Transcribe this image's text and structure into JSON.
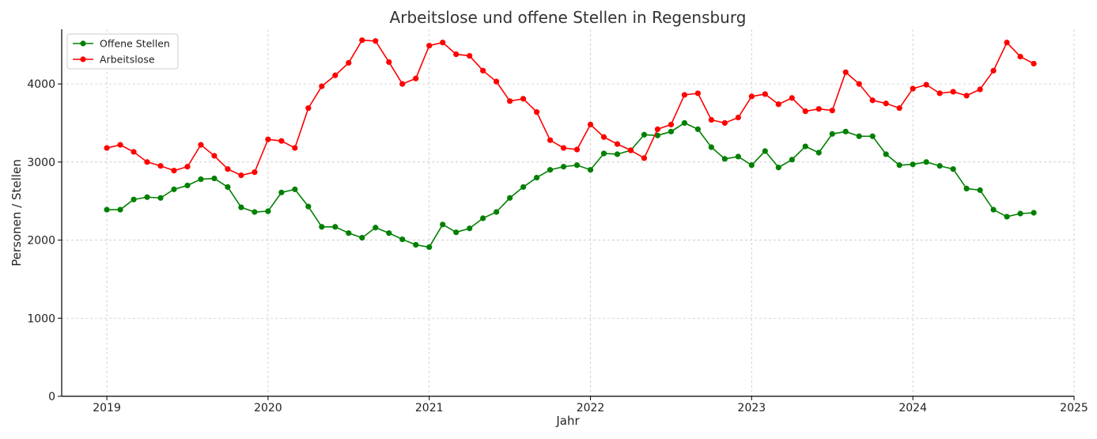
{
  "chart_data": {
    "type": "line",
    "title": "Arbeitslose und offene Stellen in Regensburg",
    "xlabel": "Jahr",
    "ylabel": "Personen / Stellen",
    "xlim": [
      2018.72,
      2025.0
    ],
    "ylim": [
      0,
      4700
    ],
    "x_ticks": [
      2019,
      2020,
      2021,
      2022,
      2023,
      2024,
      2025
    ],
    "y_ticks": [
      0,
      1000,
      2000,
      3000,
      4000
    ],
    "grid": true,
    "legend_position": "top-left",
    "x_start": "2019-01",
    "x_step": "month",
    "series": [
      {
        "name": "Offene Stellen",
        "color": "#008000",
        "values": [
          2390,
          2390,
          2520,
          2550,
          2540,
          2650,
          2700,
          2780,
          2790,
          2680,
          2420,
          2360,
          2370,
          2610,
          2650,
          2430,
          2170,
          2170,
          2090,
          2030,
          2160,
          2090,
          2010,
          1940,
          1910,
          2200,
          2100,
          2150,
          2280,
          2360,
          2540,
          2680,
          2800,
          2900,
          2940,
          2960,
          2900,
          3110,
          3100,
          3150,
          3350,
          3340,
          3390,
          3500,
          3420,
          3190,
          3040,
          3070,
          2960,
          3140,
          2930,
          3030,
          3200,
          3120,
          3360,
          3390,
          3330,
          3330,
          3100,
          2960,
          2970,
          3000,
          2950,
          2910,
          2660,
          2640,
          2390,
          2300,
          2340,
          2350
        ]
      },
      {
        "name": "Arbeitslose",
        "color": "#ff0000",
        "values": [
          3180,
          3220,
          3130,
          3000,
          2950,
          2890,
          2940,
          3220,
          3080,
          2910,
          2830,
          2870,
          3290,
          3270,
          3180,
          3690,
          3970,
          4110,
          4270,
          4560,
          4550,
          4280,
          4000,
          4070,
          4490,
          4530,
          4380,
          4360,
          4170,
          4030,
          3780,
          3810,
          3640,
          3280,
          3180,
          3160,
          3480,
          3320,
          3230,
          3150,
          3050,
          3420,
          3480,
          3860,
          3880,
          3540,
          3500,
          3570,
          3840,
          3870,
          3740,
          3820,
          3650,
          3680,
          3660,
          4150,
          4000,
          3790,
          3750,
          3690,
          3940,
          3990,
          3880,
          3900,
          3850,
          3930,
          4170,
          4530,
          4350,
          4260
        ]
      }
    ]
  }
}
